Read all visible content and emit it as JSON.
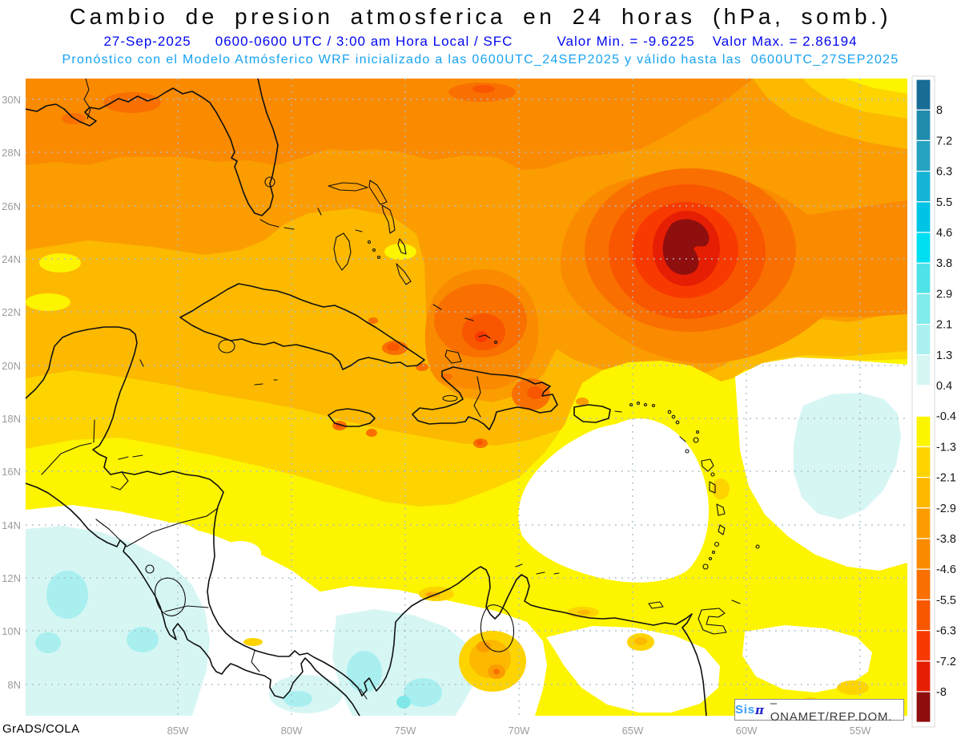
{
  "header": {
    "title": "Cambio de presion atmosferica en 24 horas (hPa, somb.)",
    "line2": {
      "date": "27-Sep-2025",
      "period": "0600-0600 UTC / 3:00 am Hora Local / SFC",
      "valor_min": "Valor Min. = -9.6225",
      "valor_max": "Valor Max. = 2.86194"
    },
    "line3": "Pronóstico con el Modelo Atmósferico WRF inicializado a las 0600UTC_24SEP2025 y válido hasta las  0600UTC_27SEP2025"
  },
  "map": {
    "units": "hPa",
    "lat_ticks": [
      "30N",
      "28N",
      "26N",
      "24N",
      "22N",
      "20N",
      "18N",
      "16N",
      "14N",
      "12N",
      "10N",
      "8N"
    ],
    "lon_ticks": [
      "85W",
      "80W",
      "75W",
      "70W",
      "65W",
      "60W",
      "55W"
    ]
  },
  "colorbar": {
    "labels": [
      "8",
      "7.2",
      "6.3",
      "5.5",
      "4.6",
      "3.8",
      "2.9",
      "2.1",
      "1.3",
      "0.4",
      "-0.4",
      "-1.3",
      "-2.1",
      "-2.9",
      "-3.8",
      "-4.6",
      "-5.5",
      "-6.3",
      "-7.2",
      "-8"
    ],
    "colors": [
      "#186C96",
      "#1F8BAD",
      "#27A2C1",
      "#15B3D6",
      "#00C4E6",
      "#00DEF2",
      "#4FE3E7",
      "#81EAEA",
      "#ABF0F0",
      "#D6F6F4",
      "#FFFFFF",
      "#FDF400",
      "#FDD400",
      "#FCB900",
      "#FB9D00",
      "#FA8A00",
      "#F97000",
      "#F95600",
      "#F93A00",
      "#E51E04",
      "#8F0E0E"
    ]
  },
  "footer": {
    "credit": "GrADS/COLA",
    "brand": {
      "sis": "Sis",
      "pi": "π",
      "rest": "– ONAMET/REP.DOM."
    }
  },
  "colors": {
    "header_line2": "#0207F0",
    "header_line3": "#17A3F2",
    "grid": "#A9BECC",
    "min_core": "#8F0E0E"
  }
}
